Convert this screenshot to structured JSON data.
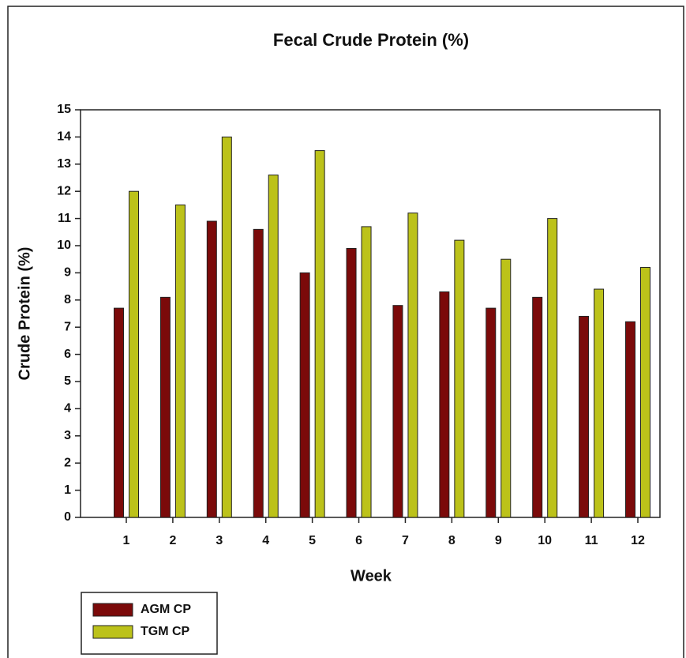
{
  "chart_data": {
    "type": "bar",
    "title": "Fecal Crude Protein (%)",
    "x_label": "Week",
    "y_label": "Crude Protein (%)",
    "categories": [
      "1",
      "2",
      "3",
      "4",
      "5",
      "6",
      "7",
      "8",
      "9",
      "10",
      "11",
      "12"
    ],
    "series": [
      {
        "name": "AGM CP",
        "color": "#7b0a0a",
        "values": [
          7.7,
          8.1,
          10.9,
          10.6,
          9.0,
          9.9,
          7.8,
          8.3,
          7.7,
          8.1,
          7.4,
          7.2
        ]
      },
      {
        "name": "TGM CP",
        "color": "#bcc21a",
        "values": [
          12.0,
          11.5,
          14.0,
          12.6,
          13.5,
          10.7,
          11.2,
          10.2,
          9.5,
          11.0,
          8.4,
          9.2
        ]
      }
    ],
    "ylim": [
      0,
      15
    ],
    "yticks": [
      0,
      1,
      2,
      3,
      4,
      5,
      6,
      7,
      8,
      9,
      10,
      11,
      12,
      13,
      14,
      15
    ],
    "legend": "lower left"
  }
}
